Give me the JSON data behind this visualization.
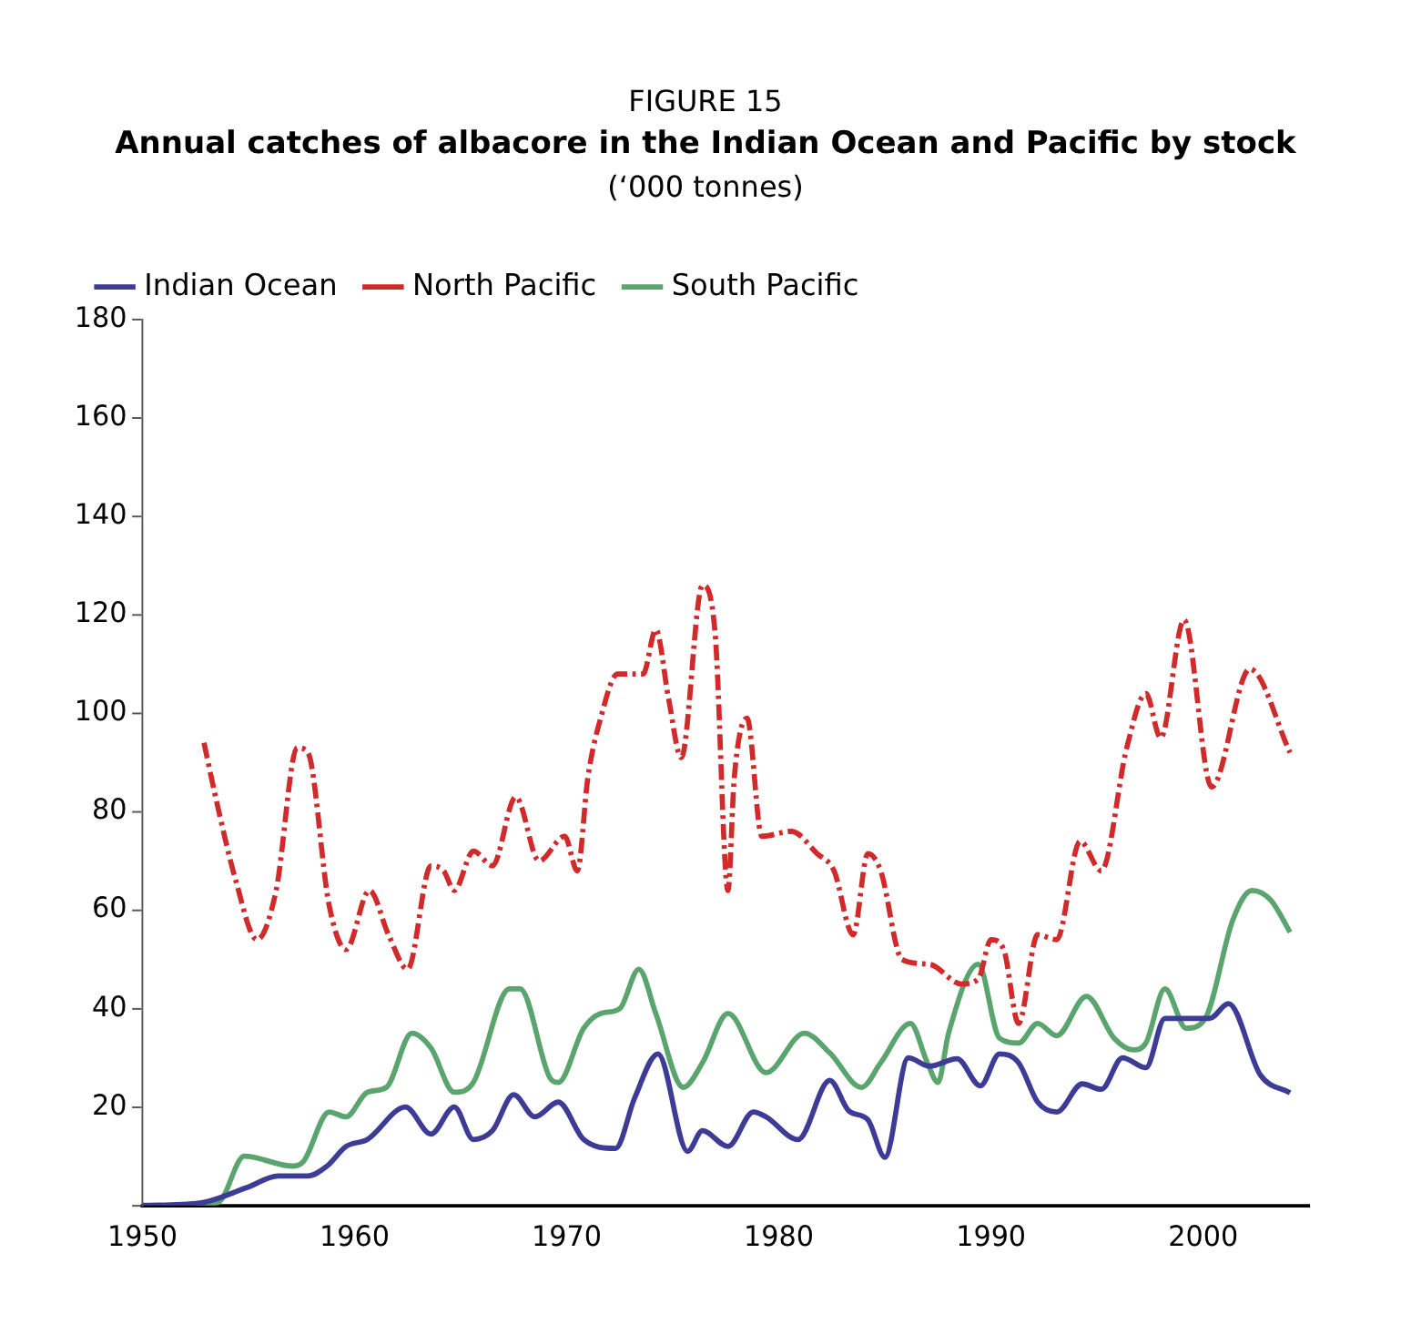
{
  "chart_data": {
    "type": "line",
    "title": "Annual catches of albacore in the Indian Ocean and Pacific by stock",
    "subtitle": "(‘000 tonnes)",
    "annotations": [
      "FIGURE 15"
    ],
    "xlim": [
      1950,
      2005
    ],
    "xticks": [
      1950,
      1960,
      1970,
      1980,
      1990,
      2000
    ],
    "ylim": [
      0,
      180
    ],
    "yticks": [
      {
        "value": 0,
        "label": null
      },
      20,
      40,
      60,
      80,
      100,
      120,
      140,
      160,
      180
    ],
    "grid": false,
    "legend": "top",
    "marker": "none",
    "series": [
      {
        "name": "Indian Ocean",
        "color": "#3c3c96",
        "line_style": "solid",
        "x": [
          1950,
          1952.7,
          1954.9,
          1956.4,
          1957.8,
          1958.7,
          1959.6,
          1960.6,
          1962.4,
          1963.6,
          1964.7,
          1965.6,
          1966.5,
          1967.5,
          1968.5,
          1969.6,
          1970.8,
          1972.3,
          1973.2,
          1974.3,
          1975.7,
          1976.4,
          1977.6,
          1978.8,
          1979.4,
          1980.9,
          1982.4,
          1983.3,
          1984.2,
          1985,
          1986.1,
          1987.1,
          1988.4,
          1989.5,
          1990.4,
          1991.3,
          1992.2,
          1993.1,
          1994.3,
          1995.2,
          1996.2,
          1997.3,
          1998.2,
          2000.3,
          2001.2,
          2002.7,
          2004.1
        ],
        "values": [
          0,
          0.5,
          3.6,
          6,
          6,
          8,
          12,
          13.4,
          20,
          14.5,
          20,
          13.4,
          15.2,
          22.5,
          18,
          21,
          13.4,
          11.6,
          21.8,
          30.8,
          11,
          15.2,
          12,
          19,
          18,
          13.4,
          25.4,
          19.2,
          17.4,
          9.8,
          30,
          28.3,
          29.8,
          24.3,
          30.8,
          29,
          21,
          19,
          24.7,
          23.6,
          30,
          28,
          38,
          38,
          41,
          26.5,
          22.9
        ]
      },
      {
        "name": "North Pacific",
        "color": "#d02a2a",
        "line_style": "dashed",
        "x": [
          1952.9,
          1953.5,
          1954.4,
          1955.4,
          1956.3,
          1957.3,
          1957.8,
          1958.8,
          1959.6,
          1960.7,
          1961.6,
          1962.5,
          1963.6,
          1964.2,
          1964.7,
          1965.6,
          1966.5,
          1967.6,
          1968.7,
          1969.9,
          1970.5,
          1971,
          1971.6,
          1972.4,
          1973.6,
          1974.2,
          1974.8,
          1975.4,
          1976.4,
          1977,
          1977.6,
          1977.9,
          1978.5,
          1979.2,
          1980.6,
          1981.8,
          1982.6,
          1983.5,
          1984.2,
          1984.8,
          1985.8,
          1987.1,
          1988.6,
          1989.4,
          1990,
          1990.6,
          1991.3,
          1992.2,
          1993.1,
          1994.2,
          1995.2,
          1996.4,
          1997.3,
          1998,
          1999.1,
          2000.4,
          2002.2,
          2004.1
        ],
        "values": [
          94,
          82,
          66,
          54,
          64,
          93,
          92,
          61,
          52,
          64,
          55,
          48,
          69,
          68,
          64,
          72,
          69,
          83,
          70,
          75,
          68,
          87,
          99,
          108,
          108,
          117,
          103,
          91,
          126,
          116,
          64,
          87,
          99,
          75,
          76,
          71.5,
          68,
          55,
          71.5,
          68,
          50,
          49,
          45,
          46,
          54,
          52,
          37,
          55,
          54,
          74,
          68,
          93,
          104,
          95,
          119,
          85,
          109,
          92
        ]
      },
      {
        "name": "South Pacific",
        "color": "#5aa46e",
        "line_style": "solid",
        "x": [
          1952.5,
          1953.6,
          1954.8,
          1957.1,
          1957.6,
          1958.8,
          1959.6,
          1960.6,
          1961.5,
          1962.7,
          1963.6,
          1964.7,
          1965.6,
          1967.3,
          1967.8,
          1969.2,
          1969.6,
          1970.8,
          1971.6,
          1972.5,
          1973.4,
          1974.2,
          1975.5,
          1976.4,
          1977.6,
          1979.4,
          1981.2,
          1982.4,
          1983.9,
          1984.8,
          1986.2,
          1987,
          1987.5,
          1988,
          1989.4,
          1990.4,
          1991.3,
          1992.2,
          1993.1,
          1994.5,
          1995.8,
          1996.7,
          1997.3,
          1998.2,
          1999.2,
          2000.1,
          2001.4,
          2002.3,
          2003.2,
          2004.1
        ],
        "values": [
          0,
          0.7,
          10,
          8,
          9,
          19,
          18,
          23,
          24,
          35,
          32,
          23,
          25,
          44,
          44,
          26,
          25,
          36,
          39,
          40,
          48,
          39,
          24,
          29,
          39,
          27,
          35,
          31,
          24,
          29,
          37,
          29,
          25,
          35,
          49,
          34,
          33,
          37,
          34.5,
          42.5,
          34,
          31.6,
          33,
          44,
          36,
          38,
          58,
          64,
          62,
          55.5
        ]
      }
    ]
  }
}
